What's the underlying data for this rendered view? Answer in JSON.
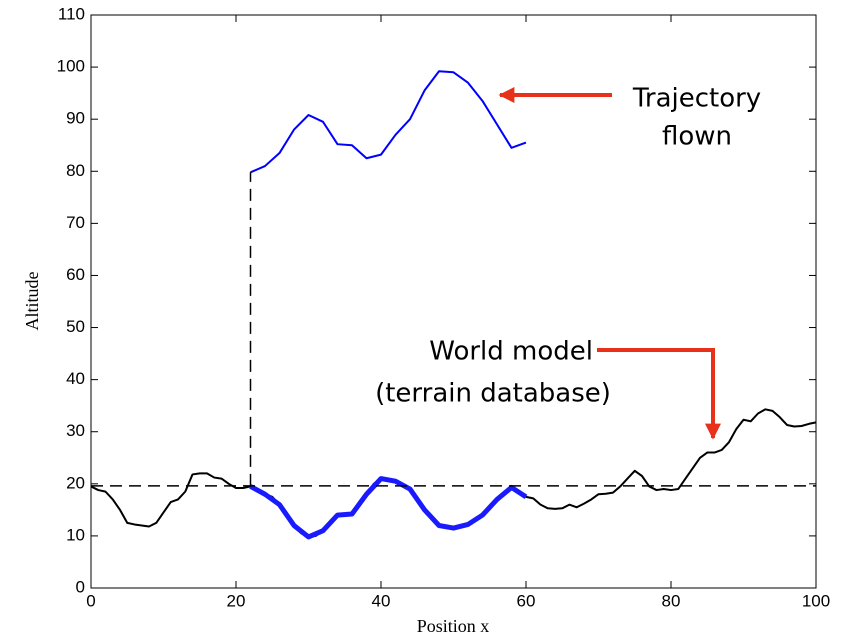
{
  "chart_data": {
    "type": "line",
    "xlabel": "Position x",
    "ylabel": "Altitude",
    "annotations": [
      [
        "Trajectory",
        "flown"
      ],
      [
        "World model",
        "(terrain database)"
      ]
    ],
    "xlim": [
      0,
      100
    ],
    "ylim": [
      0,
      110
    ],
    "xticks": [
      0,
      20,
      40,
      60,
      80,
      100
    ],
    "yticks": [
      0,
      10,
      20,
      30,
      40,
      50,
      60,
      70,
      80,
      90,
      100,
      110
    ],
    "series": [
      {
        "color": "#000000",
        "width": 2,
        "dash": false,
        "x": [
          0,
          1,
          2,
          3,
          4,
          5,
          6,
          7,
          8,
          9,
          10,
          11,
          12,
          13,
          14,
          15,
          16,
          17,
          18,
          19,
          20,
          21,
          22,
          23,
          24,
          25,
          26,
          27,
          28,
          29,
          30,
          31,
          32,
          33,
          34,
          35,
          36,
          37,
          38,
          39,
          40,
          41,
          42,
          43,
          44,
          45,
          46,
          47,
          48,
          49,
          50,
          51,
          52,
          53,
          54,
          55,
          56,
          57,
          58,
          59,
          60,
          61,
          62,
          63,
          64,
          65,
          66,
          67,
          68,
          69,
          70,
          71,
          72,
          73,
          74,
          75,
          76,
          77,
          78,
          79,
          80,
          81,
          82,
          83,
          84,
          85,
          86,
          87,
          88,
          89,
          90,
          91,
          92,
          93,
          94,
          95,
          96,
          97,
          98,
          99,
          100
        ],
        "values": [
          19.5,
          18.8,
          18.5,
          17,
          15,
          12.5,
          12.2,
          12,
          11.8,
          12.5,
          14.5,
          16.5,
          17,
          18.5,
          21.8,
          22,
          22,
          21.2,
          21,
          20,
          19.2,
          19.2,
          19.5,
          19,
          18,
          17.5,
          16,
          14,
          12,
          10.5,
          9.8,
          10,
          11,
          12.5,
          14,
          14.2,
          14.2,
          16,
          18,
          20,
          21,
          20.5,
          20.5,
          20,
          19,
          17,
          15,
          13.5,
          12,
          11.8,
          11.5,
          11.8,
          12.2,
          13,
          14,
          15.8,
          17,
          18.3,
          19.3,
          18.5,
          17.5,
          17.2,
          16,
          15.3,
          15.2,
          15.3,
          16,
          15.5,
          16.2,
          17,
          18,
          18.1,
          18.3,
          19.5,
          21,
          22.5,
          21.5,
          19.5,
          18.8,
          19,
          18.8,
          19,
          21,
          23,
          25,
          26,
          26,
          26.5,
          28,
          30.5,
          32.3,
          32,
          33.5,
          34.3,
          34,
          32.8,
          31.3,
          31,
          31.1,
          31.5,
          31.8
        ]
      },
      {
        "color": "#1a1aff",
        "width": 5,
        "dash": false,
        "x": [
          22,
          24,
          26,
          28,
          30,
          32,
          34,
          36,
          38,
          40,
          42,
          44,
          46,
          48,
          50,
          52,
          54,
          56,
          58,
          60
        ],
        "values": [
          19.5,
          18,
          16,
          12,
          9.8,
          11,
          14,
          14.2,
          18,
          21,
          20.5,
          19,
          15,
          12,
          11.5,
          12.2,
          14,
          17,
          19.3,
          17.5
        ]
      },
      {
        "color": "#0000ff",
        "width": 2,
        "dash": false,
        "x": [
          22,
          24,
          26,
          28,
          30,
          32,
          34,
          36,
          38,
          40,
          42,
          44,
          46,
          48,
          50,
          52,
          54,
          56,
          58,
          60
        ],
        "values": [
          79.8,
          81,
          83.5,
          88,
          90.8,
          89.5,
          85.2,
          85,
          82.5,
          83.2,
          87,
          90,
          95.5,
          99.2,
          99,
          97,
          93.5,
          89,
          84.5,
          85.5
        ]
      },
      {
        "color": "#000000",
        "width": 1.5,
        "dash": true,
        "x": [
          0,
          100
        ],
        "values": [
          19.6,
          19.6
        ]
      },
      {
        "color": "#000000",
        "width": 1.5,
        "dash": true,
        "x": [
          22,
          22
        ],
        "values": [
          19.6,
          79.8
        ]
      }
    ]
  }
}
